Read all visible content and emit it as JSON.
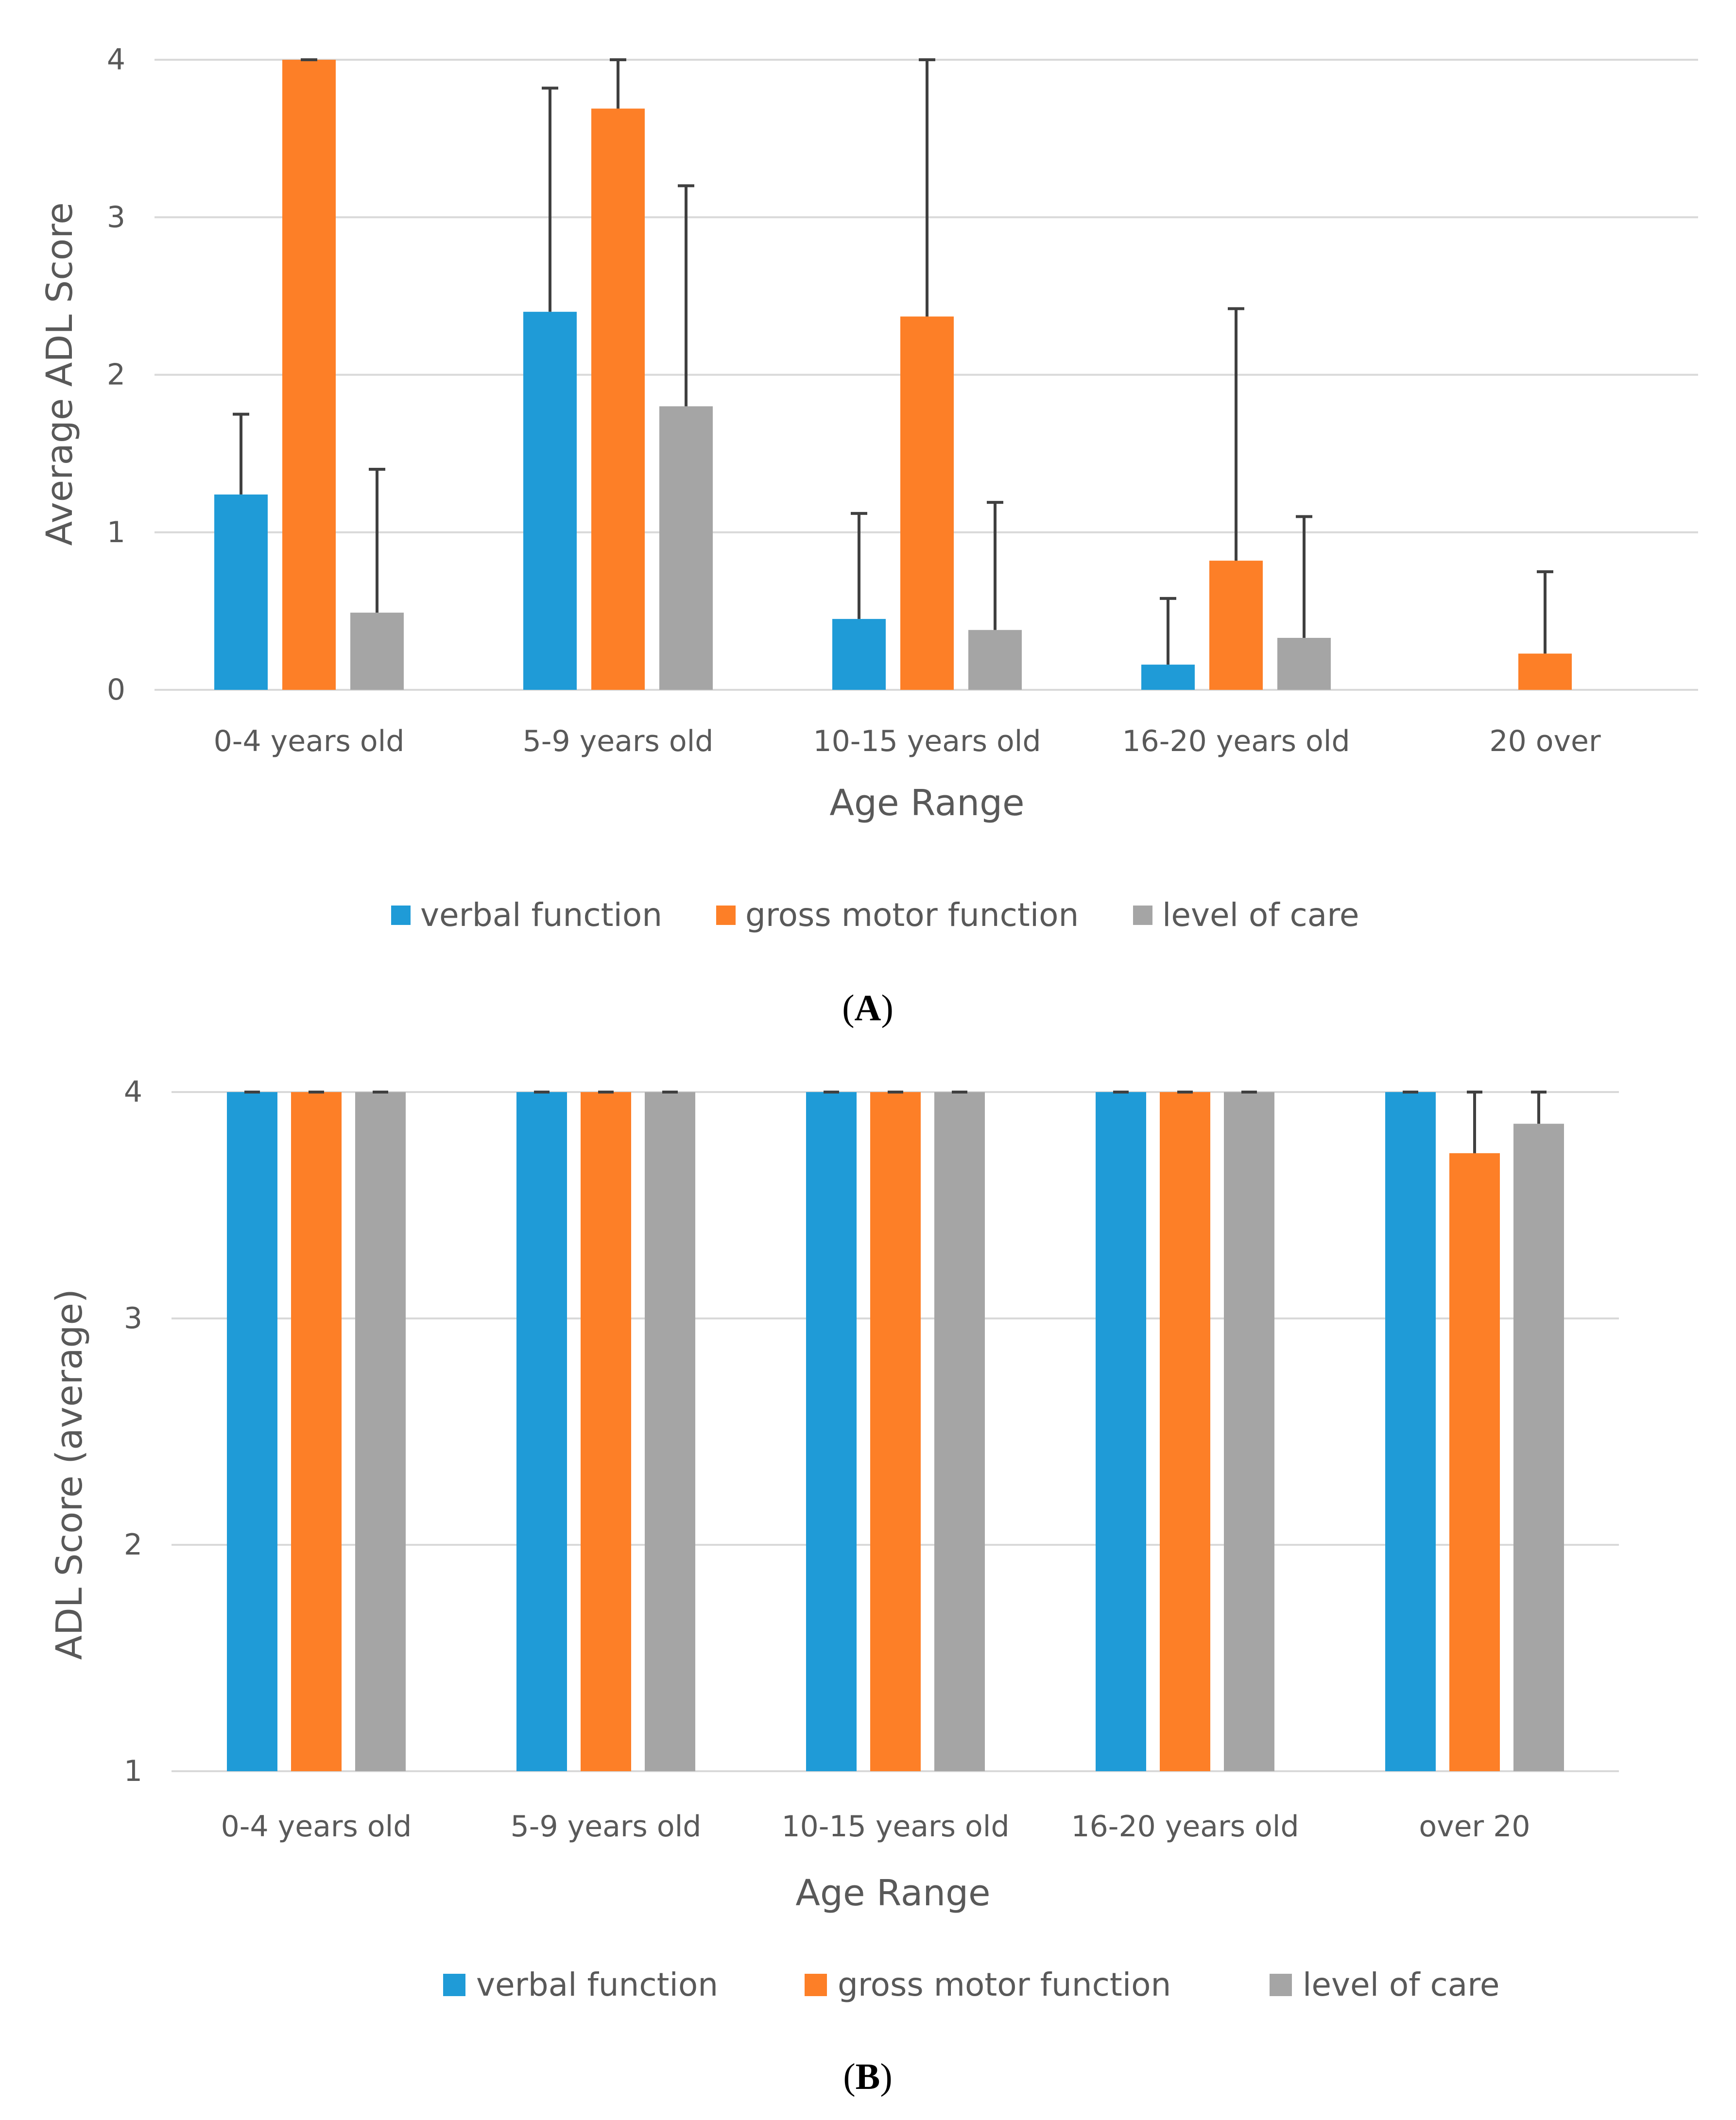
{
  "chart_data": [
    {
      "type": "bar",
      "panel_label": "A",
      "xlabel": "Age Range",
      "ylabel": "Average ADL Score",
      "ylim": [
        0,
        4
      ],
      "yticks": [
        "0",
        "1",
        "2",
        "3",
        "4"
      ],
      "grid": true,
      "legend_position": "bottom",
      "categories": [
        "0-4 years old",
        "5-9 years old",
        "10-15 years old",
        "16-20 years old",
        "20 over"
      ],
      "series": [
        {
          "name": "verbal function",
          "color": "#1f9bd7",
          "values": [
            1.24,
            2.4,
            0.45,
            0.16,
            0
          ],
          "error_plus": [
            0.51,
            1.42,
            0.67,
            0.42,
            0
          ]
        },
        {
          "name": "gross motor function",
          "color": "#fd7f27",
          "values": [
            4.0,
            3.69,
            2.37,
            0.82,
            0.23
          ],
          "error_plus": [
            0,
            0.31,
            1.63,
            1.6,
            0.52
          ]
        },
        {
          "name": "level of care",
          "color": "#a5a5a5",
          "values": [
            0.49,
            1.8,
            0.38,
            0.33,
            0
          ],
          "error_plus": [
            0.91,
            1.4,
            0.81,
            0.77,
            0
          ]
        }
      ]
    },
    {
      "type": "bar",
      "panel_label": "B",
      "xlabel": "Age Range",
      "ylabel": "ADL Score (average)",
      "ylim": [
        1,
        4
      ],
      "yticks": [
        "1",
        "2",
        "3",
        "4"
      ],
      "grid": true,
      "legend_position": "bottom",
      "categories": [
        "0-4 years old",
        "5-9 years old",
        "10-15 years old",
        "16-20 years old",
        "over 20"
      ],
      "series": [
        {
          "name": "verbal function",
          "color": "#1f9bd7",
          "values": [
            4,
            4,
            4,
            4,
            4
          ],
          "error_plus": [
            0,
            0,
            0,
            0,
            0
          ]
        },
        {
          "name": "gross motor function",
          "color": "#fd7f27",
          "values": [
            4,
            4,
            4,
            4,
            3.73
          ],
          "error_plus": [
            0,
            0,
            0,
            0,
            0.27
          ]
        },
        {
          "name": "level of care",
          "color": "#a5a5a5",
          "values": [
            4,
            4,
            4,
            4,
            3.86
          ],
          "error_plus": [
            0,
            0,
            0,
            0,
            0.14
          ]
        }
      ]
    }
  ]
}
